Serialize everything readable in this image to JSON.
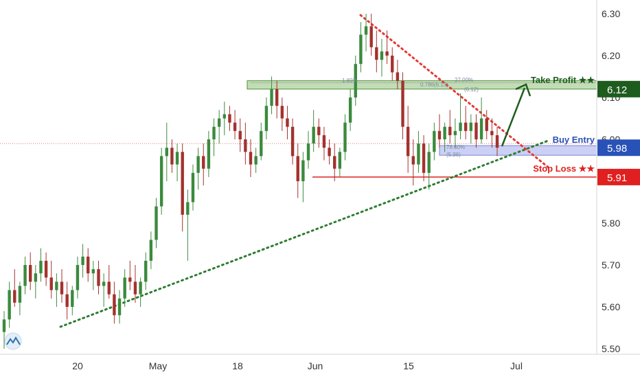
{
  "chart_data": {
    "type": "candlestick",
    "x_tick_labels": [
      "20",
      "May",
      "18",
      "Jun",
      "15",
      "Jul"
    ],
    "y_ticks": [
      "6.30",
      "6.20",
      "6.10",
      "6.00",
      "5.90",
      "5.80",
      "5.70",
      "5.60",
      "5.50"
    ],
    "ylim": [
      5.49,
      6.32
    ],
    "grid": false,
    "colors": {
      "up": "#3b8a3e",
      "down": "#a3322e",
      "tp": "#1e5c1e",
      "entry": "#2952b8",
      "sl": "#e02020"
    },
    "levels": [
      {
        "label": "Take Profit ★★",
        "value": "6.12",
        "price": 6.12
      },
      {
        "label": "Buy Entry",
        "value": "5.98",
        "price": 5.98
      },
      {
        "label": "Stop Loss ★★",
        "value": "5.91",
        "price": 5.91
      }
    ],
    "fib_labels": [
      "27.00%",
      "0.786(6.13)",
      "(6.12)",
      "78.60%",
      "(5.96)",
      "1.80%"
    ],
    "candles": [
      [
        5.54,
        5.59,
        5.5,
        5.57
      ],
      [
        5.57,
        5.66,
        5.55,
        5.64
      ],
      [
        5.64,
        5.69,
        5.6,
        5.61
      ],
      [
        5.61,
        5.66,
        5.58,
        5.65
      ],
      [
        5.65,
        5.72,
        5.63,
        5.7
      ],
      [
        5.7,
        5.73,
        5.64,
        5.66
      ],
      [
        5.66,
        5.7,
        5.62,
        5.68
      ],
      [
        5.68,
        5.74,
        5.66,
        5.71
      ],
      [
        5.71,
        5.73,
        5.65,
        5.67
      ],
      [
        5.67,
        5.71,
        5.62,
        5.64
      ],
      [
        5.64,
        5.68,
        5.6,
        5.66
      ],
      [
        5.66,
        5.69,
        5.61,
        5.63
      ],
      [
        5.63,
        5.66,
        5.57,
        5.6
      ],
      [
        5.6,
        5.65,
        5.58,
        5.64
      ],
      [
        5.64,
        5.72,
        5.62,
        5.7
      ],
      [
        5.7,
        5.75,
        5.67,
        5.72
      ],
      [
        5.72,
        5.74,
        5.66,
        5.68
      ],
      [
        5.68,
        5.71,
        5.64,
        5.69
      ],
      [
        5.69,
        5.71,
        5.63,
        5.65
      ],
      [
        5.65,
        5.68,
        5.6,
        5.66
      ],
      [
        5.66,
        5.7,
        5.62,
        5.63
      ],
      [
        5.63,
        5.66,
        5.56,
        5.58
      ],
      [
        5.58,
        5.64,
        5.56,
        5.62
      ],
      [
        5.62,
        5.69,
        5.6,
        5.67
      ],
      [
        5.67,
        5.71,
        5.64,
        5.66
      ],
      [
        5.66,
        5.7,
        5.61,
        5.63
      ],
      [
        5.63,
        5.67,
        5.6,
        5.66
      ],
      [
        5.66,
        5.73,
        5.64,
        5.71
      ],
      [
        5.71,
        5.78,
        5.69,
        5.76
      ],
      [
        5.76,
        5.86,
        5.74,
        5.84
      ],
      [
        5.84,
        5.98,
        5.82,
        5.96
      ],
      [
        5.96,
        6.04,
        5.9,
        5.98
      ],
      [
        5.98,
        6.0,
        5.92,
        5.94
      ],
      [
        5.94,
        5.99,
        5.9,
        5.97
      ],
      [
        5.97,
        5.99,
        5.78,
        5.82
      ],
      [
        5.82,
        5.88,
        5.71,
        5.85
      ],
      [
        5.85,
        5.94,
        5.83,
        5.92
      ],
      [
        5.92,
        5.98,
        5.88,
        5.96
      ],
      [
        5.96,
        5.99,
        5.89,
        5.93
      ],
      [
        5.93,
        6.02,
        5.91,
        6.0
      ],
      [
        6.0,
        6.05,
        5.96,
        6.03
      ],
      [
        6.03,
        6.07,
        5.99,
        6.05
      ],
      [
        6.05,
        6.09,
        6.01,
        6.06
      ],
      [
        6.06,
        6.08,
        6.02,
        6.04
      ],
      [
        6.04,
        6.07,
        6.0,
        6.02
      ],
      [
        6.02,
        6.05,
        5.97,
        6.0
      ],
      [
        6.0,
        6.04,
        5.94,
        5.97
      ],
      [
        5.97,
        6.0,
        5.91,
        5.94
      ],
      [
        5.94,
        5.98,
        5.92,
        5.96
      ],
      [
        5.96,
        6.04,
        5.95,
        6.02
      ],
      [
        6.02,
        6.1,
        6.0,
        6.08
      ],
      [
        6.08,
        6.15,
        6.06,
        6.12
      ],
      [
        6.12,
        6.14,
        6.05,
        6.08
      ],
      [
        6.08,
        6.1,
        6.02,
        6.05
      ],
      [
        6.05,
        6.08,
        6.0,
        6.03
      ],
      [
        6.03,
        6.05,
        5.94,
        5.96
      ],
      [
        5.96,
        5.99,
        5.86,
        5.9
      ],
      [
        5.9,
        5.97,
        5.85,
        5.95
      ],
      [
        5.95,
        6.02,
        5.93,
        5.99
      ],
      [
        5.99,
        6.07,
        5.97,
        6.03
      ],
      [
        6.03,
        6.05,
        5.98,
        6.01
      ],
      [
        6.01,
        6.03,
        5.95,
        5.98
      ],
      [
        5.98,
        6.0,
        5.94,
        5.96
      ],
      [
        5.96,
        5.99,
        5.9,
        5.93
      ],
      [
        5.93,
        5.98,
        5.91,
        5.97
      ],
      [
        5.97,
        6.06,
        5.95,
        6.04
      ],
      [
        6.04,
        6.12,
        6.02,
        6.1
      ],
      [
        6.1,
        6.2,
        6.08,
        6.18
      ],
      [
        6.18,
        6.28,
        6.16,
        6.25
      ],
      [
        6.25,
        6.3,
        6.21,
        6.27
      ],
      [
        6.27,
        6.3,
        6.2,
        6.22
      ],
      [
        6.22,
        6.26,
        6.16,
        6.19
      ],
      [
        6.19,
        6.24,
        6.15,
        6.21
      ],
      [
        6.21,
        6.26,
        6.18,
        6.2
      ],
      [
        6.2,
        6.22,
        6.14,
        6.16
      ],
      [
        6.16,
        6.19,
        6.12,
        6.14
      ],
      [
        6.14,
        6.16,
        6.0,
        6.03
      ],
      [
        6.03,
        6.08,
        5.92,
        5.96
      ],
      [
        5.96,
        6.0,
        5.89,
        5.94
      ],
      [
        5.94,
        6.02,
        5.92,
        5.99
      ],
      [
        5.99,
        6.01,
        5.9,
        5.92
      ],
      [
        5.92,
        5.99,
        5.88,
        5.97
      ],
      [
        5.97,
        6.04,
        5.95,
        6.02
      ],
      [
        6.02,
        6.06,
        5.98,
        6.0
      ],
      [
        6.0,
        6.04,
        5.97,
        6.03
      ],
      [
        6.03,
        6.07,
        5.99,
        6.01
      ],
      [
        6.01,
        6.05,
        5.98,
        6.02
      ],
      [
        6.02,
        6.11,
        6.0,
        6.04
      ],
      [
        6.04,
        6.08,
        6.0,
        6.02
      ],
      [
        6.02,
        6.06,
        5.99,
        6.04
      ],
      [
        6.04,
        6.06,
        5.98,
        6.0
      ],
      [
        6.0,
        6.1,
        5.99,
        6.05
      ],
      [
        6.05,
        6.07,
        6.0,
        6.02
      ],
      [
        6.02,
        6.05,
        5.98,
        6.01
      ],
      [
        6.01,
        6.03,
        5.96,
        5.98
      ]
    ]
  }
}
